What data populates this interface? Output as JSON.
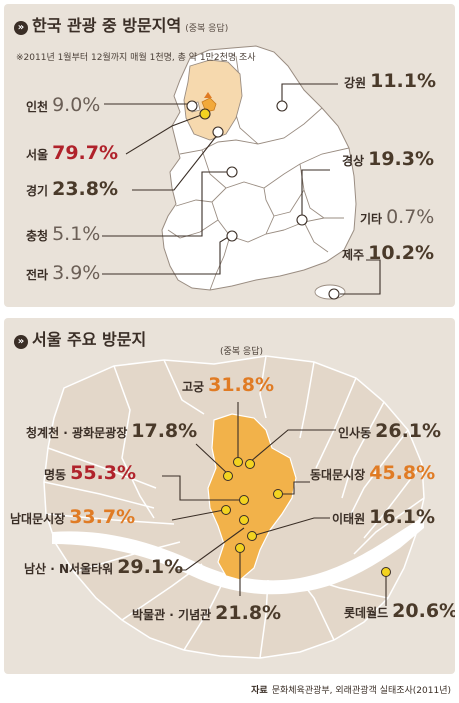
{
  "korea": {
    "title": "한국 관광 중 방문지역",
    "title_note": "(중복 응답)",
    "subnote": "※2011년 1월부터 12월까지 매월 1천명, 총 약 1만2천명 조사",
    "regions": [
      {
        "name": "인천",
        "value": "9.0%",
        "value_pct": 9.0,
        "color": "#6b5f56"
      },
      {
        "name": "서울",
        "value": "79.7%",
        "value_pct": 79.7,
        "color": "#b0222b"
      },
      {
        "name": "경기",
        "value": "23.8%",
        "value_pct": 23.8,
        "color": "#4a3a2a"
      },
      {
        "name": "충청",
        "value": "5.1%",
        "value_pct": 5.1,
        "color": "#6b5f56"
      },
      {
        "name": "전라",
        "value": "3.9%",
        "value_pct": 3.9,
        "color": "#6b5f56"
      },
      {
        "name": "강원",
        "value": "11.1%",
        "value_pct": 11.1,
        "color": "#4a3a2a"
      },
      {
        "name": "경상",
        "value": "19.3%",
        "value_pct": 19.3,
        "color": "#4a3a2a"
      },
      {
        "name": "기타",
        "value": "0.7%",
        "value_pct": 0.7,
        "color": "#6b5f56"
      },
      {
        "name": "제주",
        "value": "10.2%",
        "value_pct": 10.2,
        "color": "#4a3a2a"
      }
    ]
  },
  "seoul": {
    "title": "서울 주요 방문지",
    "title_note": "(중복 응답)",
    "places": [
      {
        "name": "고궁",
        "value": "31.8%",
        "value_pct": 31.8,
        "color": "#e07b24"
      },
      {
        "name": "청계천 · 광화문광장",
        "value": "17.8%",
        "value_pct": 17.8,
        "color": "#4a3a2a"
      },
      {
        "name": "인사동",
        "value": "26.1%",
        "value_pct": 26.1,
        "color": "#4a3a2a"
      },
      {
        "name": "명동",
        "value": "55.3%",
        "value_pct": 55.3,
        "color": "#b0222b"
      },
      {
        "name": "동대문시장",
        "value": "45.8%",
        "value_pct": 45.8,
        "color": "#e07b24"
      },
      {
        "name": "남대문시장",
        "value": "33.7%",
        "value_pct": 33.7,
        "color": "#e07b24"
      },
      {
        "name": "이태원",
        "value": "16.1%",
        "value_pct": 16.1,
        "color": "#4a3a2a"
      },
      {
        "name": "남산 · N서울타워",
        "value": "29.1%",
        "value_pct": 29.1,
        "color": "#4a3a2a"
      },
      {
        "name": "박물관 · 기념관",
        "value": "21.8%",
        "value_pct": 21.8,
        "color": "#4a3a2a"
      },
      {
        "name": "롯데월드",
        "value": "20.6%",
        "value_pct": 20.6,
        "color": "#4a3a2a"
      }
    ]
  },
  "source": {
    "label": "자료",
    "text": "문화체육관광부, 외래관광객 실태조사(2011년)"
  },
  "colors": {
    "panel_bg": "#e9e2d9",
    "province_fill": "#ffffff",
    "gyeonggi_fill": "#f6d9ae",
    "seoul_fill": "#f2a93a",
    "marker_fill": "#f3d320",
    "line": "#3a2e26"
  }
}
